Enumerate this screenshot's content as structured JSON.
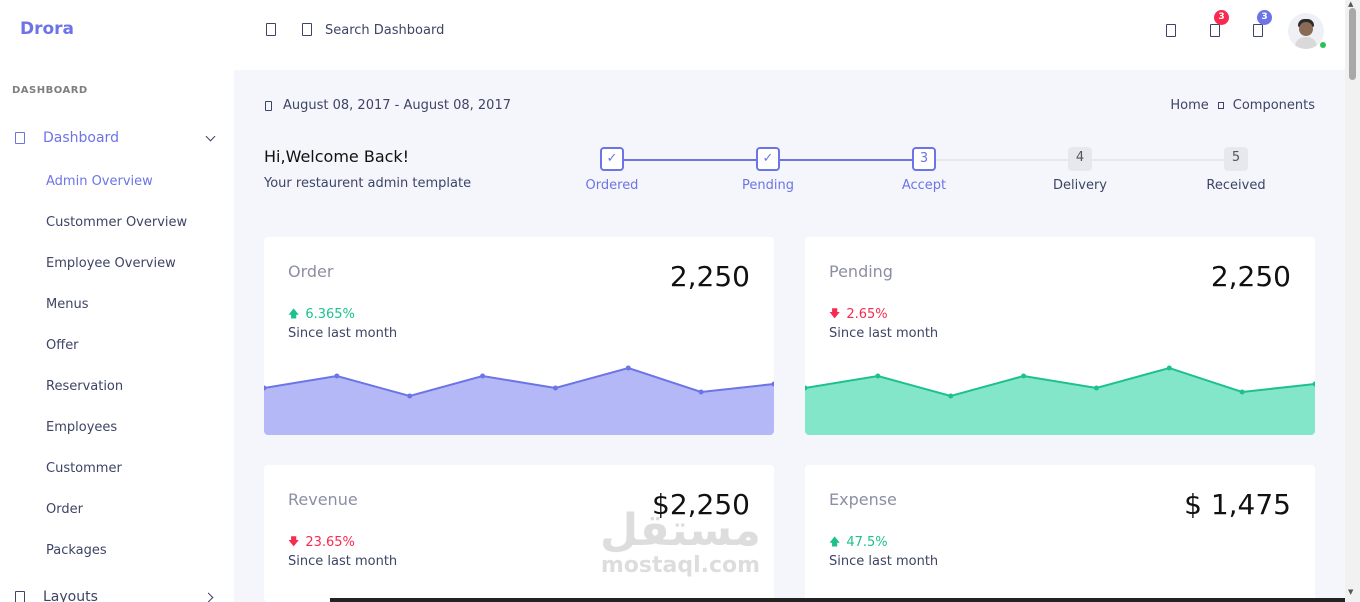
{
  "header": {
    "brand": "Drora",
    "search_placeholder": "Search Dashboard",
    "notification_badge_1": "3",
    "notification_badge_2": "3",
    "badge_colors": [
      "#f72b50",
      "#6c74e6"
    ]
  },
  "sidebar": {
    "section_title": "DASHBOARD",
    "main_item": "Dashboard",
    "items": [
      {
        "label": "Admin Overview",
        "active": true
      },
      {
        "label": "Custommer Overview",
        "active": false
      },
      {
        "label": "Employee Overview",
        "active": false
      },
      {
        "label": "Menus",
        "active": false
      },
      {
        "label": "Offer",
        "active": false
      },
      {
        "label": "Reservation",
        "active": false
      },
      {
        "label": "Employees",
        "active": false
      },
      {
        "label": "Custommer",
        "active": false
      },
      {
        "label": "Order",
        "active": false
      },
      {
        "label": "Packages",
        "active": false
      }
    ],
    "layouts_label": "Layouts"
  },
  "content": {
    "date_range": "August 08, 2017 - August 08, 2017",
    "breadcrumb": [
      "Home",
      "Components"
    ],
    "welcome_title": "Hi,Welcome Back!",
    "welcome_subtitle": "Your restaurent admin template"
  },
  "stepper": [
    {
      "mark": "✓",
      "label": "Ordered",
      "state": "done"
    },
    {
      "mark": "✓",
      "label": "Pending",
      "state": "done"
    },
    {
      "mark": "3",
      "label": "Accept",
      "state": "current"
    },
    {
      "mark": "4",
      "label": "Delivery",
      "state": "todo"
    },
    {
      "mark": "5",
      "label": "Received",
      "state": "todo"
    }
  ],
  "cards": [
    {
      "title": "Order",
      "value": "2,250",
      "change": "6.365%",
      "direction": "up",
      "since": "Since last month",
      "color": "#6c74e6",
      "fill": "#b5b8f7"
    },
    {
      "title": "Pending",
      "value": "2,250",
      "change": "2.65%",
      "direction": "down",
      "since": "Since last month",
      "color": "#1ec18e",
      "fill": "#84e6c9"
    },
    {
      "title": "Revenue",
      "value": "$2,250",
      "change": "23.65%",
      "direction": "down",
      "since": "Since last month"
    },
    {
      "title": "Expense",
      "value": "$ 1,475",
      "change": "47.5%",
      "direction": "up",
      "since": "Since last month"
    }
  ],
  "sparklines": {
    "order": [
      6,
      9,
      4,
      9,
      6,
      11,
      5,
      7
    ],
    "pending": [
      6,
      9,
      4,
      9,
      6,
      11,
      5,
      7
    ]
  },
  "status_colors": {
    "up": "#1ec18e",
    "down": "#f72b50"
  },
  "watermark": {
    "arabic": "مستقل",
    "latin": "mostaql.com"
  }
}
